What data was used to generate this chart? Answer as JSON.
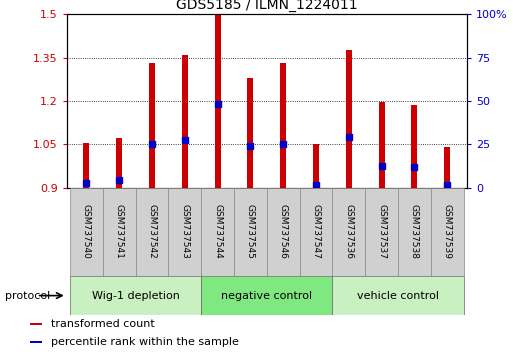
{
  "title": "GDS5185 / ILMN_1224011",
  "samples": [
    "GSM737540",
    "GSM737541",
    "GSM737542",
    "GSM737543",
    "GSM737544",
    "GSM737545",
    "GSM737546",
    "GSM737547",
    "GSM737536",
    "GSM737537",
    "GSM737538",
    "GSM737539"
  ],
  "red_values": [
    1.055,
    1.07,
    1.33,
    1.36,
    1.5,
    1.28,
    1.33,
    1.05,
    1.375,
    1.195,
    1.185,
    1.04
  ],
  "blue_values": [
    0.915,
    0.925,
    1.05,
    1.065,
    1.19,
    1.045,
    1.05,
    0.91,
    1.075,
    0.975,
    0.97,
    0.91
  ],
  "ylim_left": [
    0.9,
    1.5
  ],
  "ylim_right": [
    0,
    100
  ],
  "yticks_left": [
    0.9,
    1.05,
    1.2,
    1.35,
    1.5
  ],
  "yticks_right": [
    0,
    25,
    50,
    75,
    100
  ],
  "ytick_labels_left": [
    "0.9",
    "1.05",
    "1.2",
    "1.35",
    "1.5"
  ],
  "ytick_labels_right": [
    "0",
    "25",
    "50",
    "75",
    "100%"
  ],
  "bar_bottom": 0.9,
  "bar_color": "#cc0000",
  "dot_color": "#0000cc",
  "groups": [
    {
      "label": "Wig-1 depletion",
      "start": 0,
      "end": 4,
      "color": "#c8f0c0"
    },
    {
      "label": "negative control",
      "start": 4,
      "end": 8,
      "color": "#80e880"
    },
    {
      "label": "vehicle control",
      "start": 8,
      "end": 12,
      "color": "#c8f0c0"
    }
  ],
  "protocol_label": "protocol",
  "legend_items": [
    {
      "color": "#cc0000",
      "label": "transformed count"
    },
    {
      "color": "#0000cc",
      "label": "percentile rank within the sample"
    }
  ],
  "background_color": "#ffffff",
  "bar_width": 0.18,
  "grid_color": "#000000",
  "label_bg": "#d0d0d0"
}
